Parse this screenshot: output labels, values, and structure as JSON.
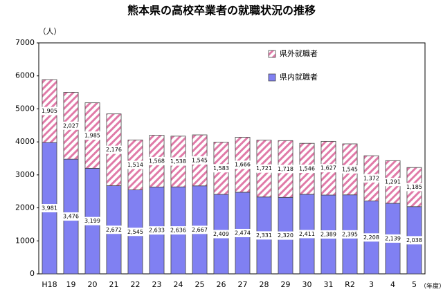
{
  "chart_data": {
    "type": "stacked-bar",
    "title": "熊本県の高校卒業者の就職状況の推移",
    "y_unit": "（人）",
    "x_unit": "（年度）",
    "categories": [
      "H18",
      "19",
      "20",
      "21",
      "22",
      "23",
      "24",
      "25",
      "26",
      "27",
      "28",
      "29",
      "30",
      "31",
      "R2",
      "3",
      "4",
      "5"
    ],
    "series": [
      {
        "name": "県内就職者",
        "color": "#8080f2",
        "pattern": "solid",
        "values": [
          3981,
          3476,
          3199,
          2672,
          2545,
          2633,
          2636,
          2667,
          2409,
          2474,
          2331,
          2320,
          2411,
          2389,
          2395,
          2208,
          2139,
          2038
        ],
        "value_labels": [
          "3,981",
          "3,476",
          "3,199",
          "2,672",
          "2,545",
          "2,633",
          "2,636",
          "2,667",
          "2,409",
          "2,474",
          "2,331",
          "2,320",
          "2,411",
          "2,389",
          "2,395",
          "2,208",
          "2,139",
          "2,038"
        ]
      },
      {
        "name": "県外就職者",
        "color": "#e07aa8",
        "pattern": "hatch",
        "values": [
          1905,
          2027,
          1985,
          2176,
          1514,
          1568,
          1538,
          1545,
          1583,
          1666,
          1721,
          1718,
          1546,
          1627,
          1545,
          1372,
          1291,
          1185
        ],
        "value_labels": [
          "1,905",
          "2,027",
          "1,985",
          "2,176",
          "1,514",
          "1,568",
          "1,538",
          "1,545",
          "1,583",
          "1,666",
          "1,721",
          "1,718",
          "1,546",
          "1,627",
          "1,545",
          "1,372",
          "1,291",
          "1,185"
        ]
      }
    ],
    "ylim": [
      0,
      7000
    ],
    "yticks": [
      0,
      1000,
      2000,
      3000,
      4000,
      5000,
      6000,
      7000
    ],
    "grid": false,
    "legend": "upper-right"
  }
}
